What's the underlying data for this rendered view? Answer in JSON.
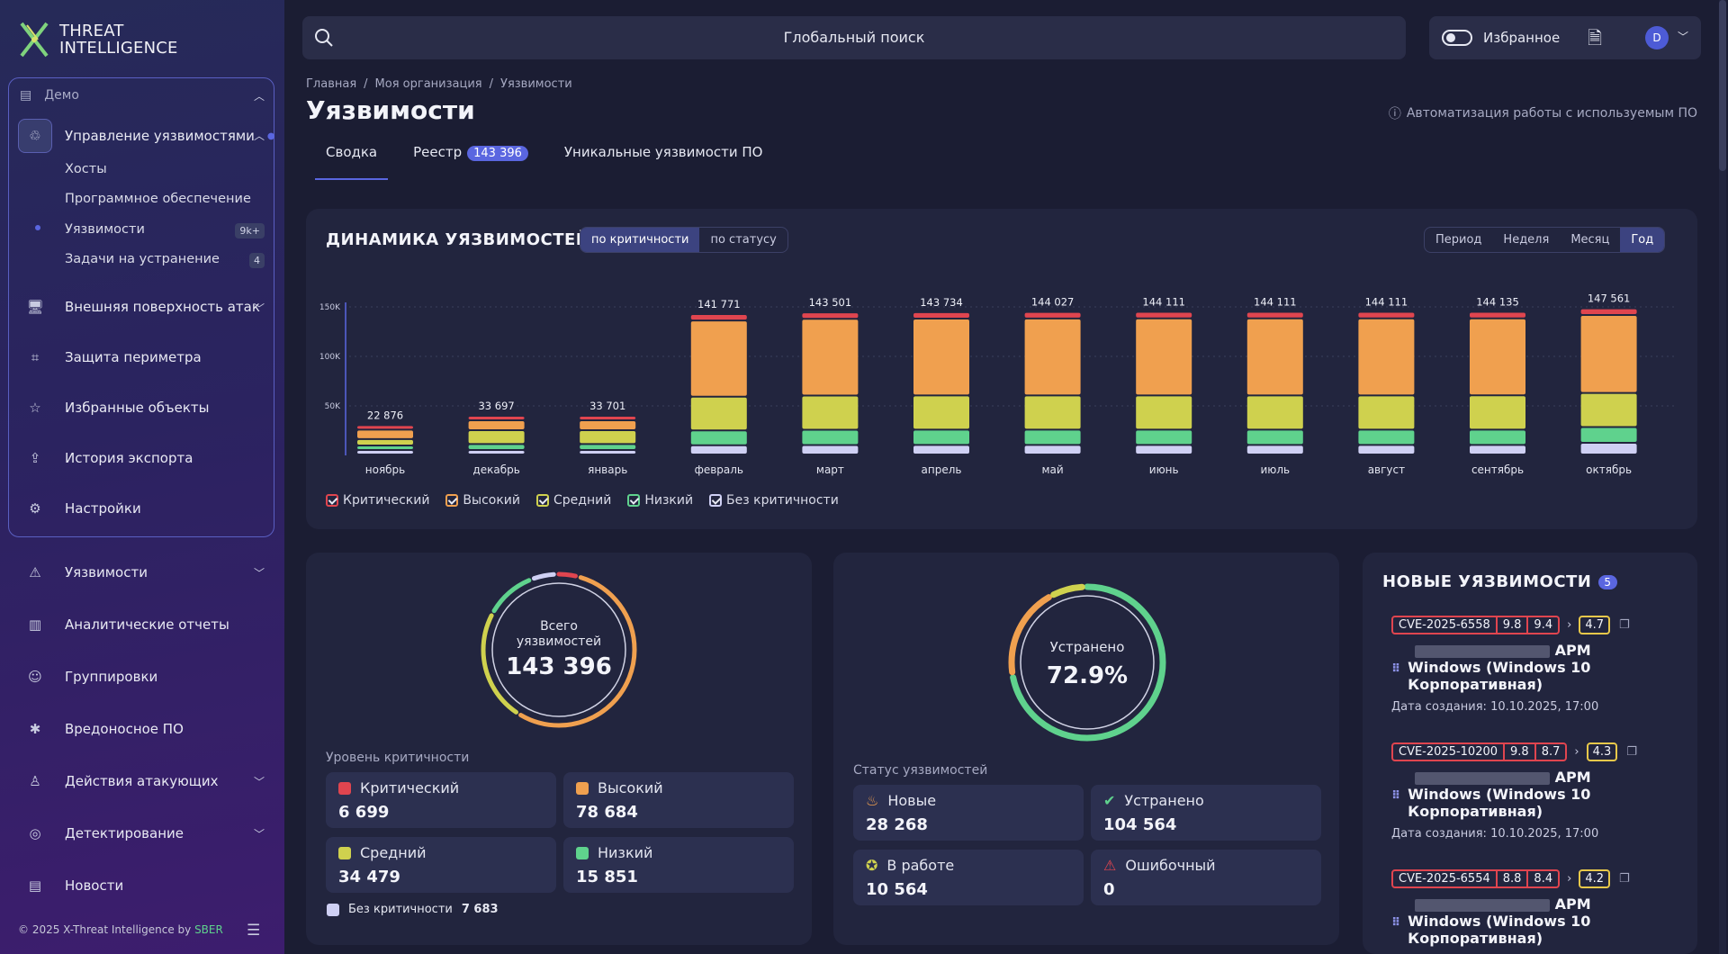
{
  "brand": {
    "line1": "THREAT",
    "line2": "INTELLIGENCE"
  },
  "sidebar": {
    "org": "Демо",
    "main_items": [
      {
        "label": "Управление уязвимостями",
        "icon": "recycle-icon"
      },
      {
        "label": "Внешняя поверхность атак",
        "icon": "monitor-user-icon"
      },
      {
        "label": "Защита периметра",
        "icon": "scan-icon"
      },
      {
        "label": "Избранные объекты",
        "icon": "star-icon"
      },
      {
        "label": "История экспорта",
        "icon": "upload-icon"
      },
      {
        "label": "Настройки",
        "icon": "gear-icon"
      }
    ],
    "sub_items": [
      {
        "label": "Хосты",
        "badge": ""
      },
      {
        "label": "Программное обеспечение",
        "badge": ""
      },
      {
        "label": "Уязвимости",
        "badge": "9k+"
      },
      {
        "label": "Задачи на устранение",
        "badge": "4"
      }
    ],
    "lower_items": [
      {
        "label": "Уязвимости",
        "icon": "warning-icon"
      },
      {
        "label": "Аналитические отчеты",
        "icon": "chart-icon"
      },
      {
        "label": "Группировки",
        "icon": "group-icon"
      },
      {
        "label": "Вредоносное ПО",
        "icon": "bug-icon"
      },
      {
        "label": "Действия атакующих",
        "icon": "attacker-icon"
      },
      {
        "label": "Детектирование",
        "icon": "target-icon"
      },
      {
        "label": "Новости",
        "icon": "news-icon"
      }
    ],
    "footer_text": "© 2025 X-Threat Intelligence by",
    "footer_brand": "SBER"
  },
  "topbar": {
    "search_placeholder": "Глобальный поиск",
    "favorites_label": "Избранное",
    "avatar_letter": "D"
  },
  "breadcrumb": [
    "Главная",
    "Моя организация",
    "Уязвимости"
  ],
  "page_title": "Уязвимости",
  "info_link": "Автоматизация работы с используемым ПО",
  "tabs": [
    {
      "label": "Сводка",
      "count": ""
    },
    {
      "label": "Реестр",
      "count": "143 396"
    },
    {
      "label": "Уникальные уязвимости ПО",
      "count": ""
    }
  ],
  "dynamics": {
    "title": "ДИНАМИКА УЯЗВИМОСТЕЙ",
    "mode_options": [
      "по критичности",
      "по статусу"
    ],
    "period_options": [
      "Период",
      "Неделя",
      "Месяц",
      "Год"
    ],
    "legend": [
      "Критический",
      "Высокий",
      "Средний",
      "Низкий",
      "Без критичности"
    ]
  },
  "chart_data": {
    "type": "bar",
    "stacked": true,
    "categories": [
      "ноябрь",
      "декабрь",
      "январь",
      "февраль",
      "март",
      "апрель",
      "май",
      "июнь",
      "июль",
      "август",
      "сентябрь",
      "октябрь"
    ],
    "totals": [
      "22 876",
      "33 697",
      "33 701",
      "141 771",
      "143 501",
      "143 734",
      "144 027",
      "144 111",
      "144 111",
      "144 111",
      "144 135",
      "147 561"
    ],
    "total_values": [
      22876,
      33697,
      33701,
      141771,
      143501,
      143734,
      144027,
      144111,
      144111,
      144111,
      144135,
      147561
    ],
    "y_ticks": [
      "50K",
      "100K",
      "150K"
    ],
    "ylim": [
      0,
      150000
    ],
    "series": [
      {
        "name": "Критический",
        "color": "#e0454f",
        "values": [
          1000,
          1500,
          1500,
          6400,
          6500,
          6500,
          6600,
          6600,
          6600,
          6600,
          6600,
          6700
        ]
      },
      {
        "name": "Высокий",
        "color": "#f0a04f",
        "values": [
          9500,
          10000,
          10000,
          77000,
          77500,
          77600,
          77800,
          77800,
          77800,
          77800,
          77800,
          78684
        ]
      },
      {
        "name": "Средний",
        "color": "#cfd14e",
        "values": [
          6500,
          14000,
          14000,
          34000,
          34500,
          34500,
          34500,
          34600,
          34600,
          34600,
          34600,
          34479
        ]
      },
      {
        "name": "Низкий",
        "color": "#5fd28d",
        "values": [
          4000,
          6000,
          6000,
          15000,
          15500,
          15500,
          15500,
          15500,
          15500,
          15500,
          15500,
          15851
        ]
      },
      {
        "name": "Без критичности",
        "color": "#cfd0f4",
        "values": [
          1876,
          2197,
          2201,
          9371,
          9501,
          9634,
          9627,
          9611,
          9611,
          9611,
          9635,
          11847
        ]
      }
    ]
  },
  "severity": {
    "donut_label": "Всего уязвимостей",
    "total": "143 396",
    "section_label": "Уровень критичности",
    "items": [
      {
        "label": "Критический",
        "value": "6 699",
        "color": "#e0454f",
        "num": 6699
      },
      {
        "label": "Высокий",
        "value": "78 684",
        "color": "#f0a04f",
        "num": 78684
      },
      {
        "label": "Средний",
        "value": "34 479",
        "color": "#cfd14e",
        "num": 34479
      },
      {
        "label": "Низкий",
        "value": "15 851",
        "color": "#5fd28d",
        "num": 15851
      }
    ],
    "none_label": "Без критичности",
    "none_value": "7 683",
    "none_color": "#cfd0f4"
  },
  "status": {
    "donut_label": "Устранено",
    "percent": "72.9%",
    "section_label": "Статус уязвимостей",
    "items": [
      {
        "label": "Новые",
        "value": "28 268",
        "color": "#f0a04f",
        "icon": "flame-icon",
        "num": 28268
      },
      {
        "label": "Устранено",
        "value": "104 564",
        "color": "#5fd28d",
        "icon": "check-circle-icon",
        "num": 104564
      },
      {
        "label": "В работе",
        "value": "10 564",
        "color": "#cfd14e",
        "icon": "work-icon",
        "num": 10564
      },
      {
        "label": "Ошибочный",
        "value": "0",
        "color": "#e0454f",
        "icon": "warning-icon",
        "num": 0
      }
    ]
  },
  "new_vulns": {
    "title": "НОВЫЕ УЯЗВИМОСТИ",
    "count": "5",
    "date_prefix": "Дата создания:",
    "items": [
      {
        "cve": "CVE-2025-6558",
        "s1": "9.8",
        "s2": "9.4",
        "s3": "4.7",
        "host_suffix": "АРМ",
        "os": "Windows (Windows 10 Корпоративная)",
        "date": "10.10.2025, 17:00"
      },
      {
        "cve": "CVE-2025-10200",
        "s1": "9.8",
        "s2": "8.7",
        "s3": "4.3",
        "host_suffix": "АРМ",
        "os": "Windows (Windows 10 Корпоративная)",
        "date": "10.10.2025, 17:00"
      },
      {
        "cve": "CVE-2025-6554",
        "s1": "8.8",
        "s2": "8.4",
        "s3": "4.2",
        "host_suffix": "АРМ",
        "os": "Windows (Windows 10 Корпоративная)",
        "date": ""
      }
    ]
  }
}
